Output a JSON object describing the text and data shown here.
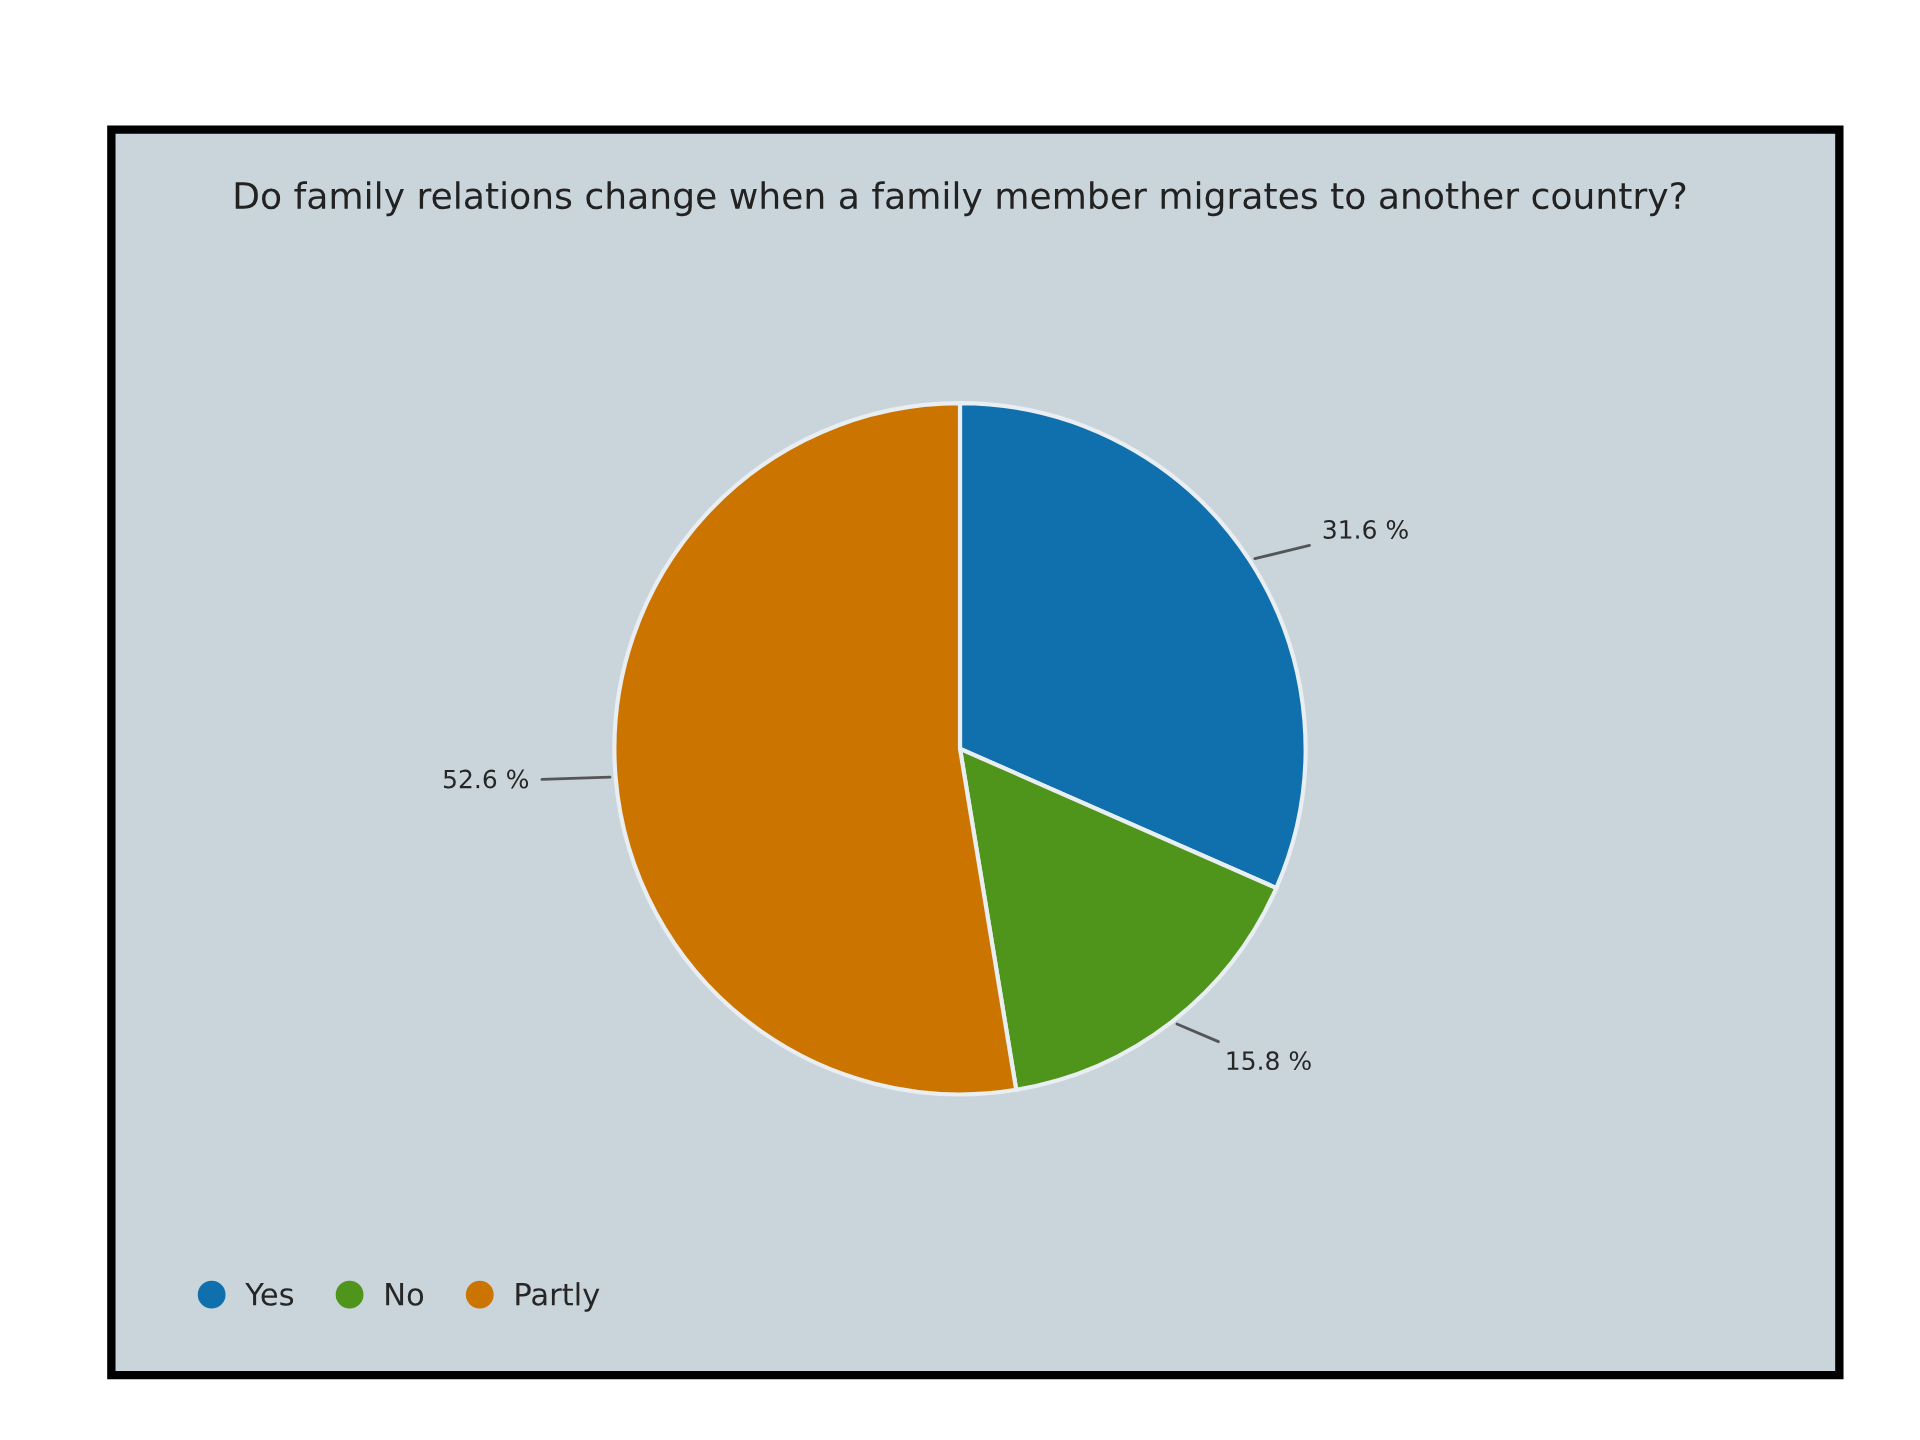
{
  "chart_data": {
    "type": "pie",
    "title": "Do family relations change when a family member migrates to another country?",
    "categories": [
      "Yes",
      "No",
      "Partly"
    ],
    "values": [
      31.6,
      15.8,
      52.6
    ],
    "value_labels": [
      "31.6 %",
      "15.8 %",
      "52.6 %"
    ],
    "colors": [
      "#1070ad",
      "#4f951c",
      "#cc7400"
    ],
    "legend": "bottom left"
  }
}
